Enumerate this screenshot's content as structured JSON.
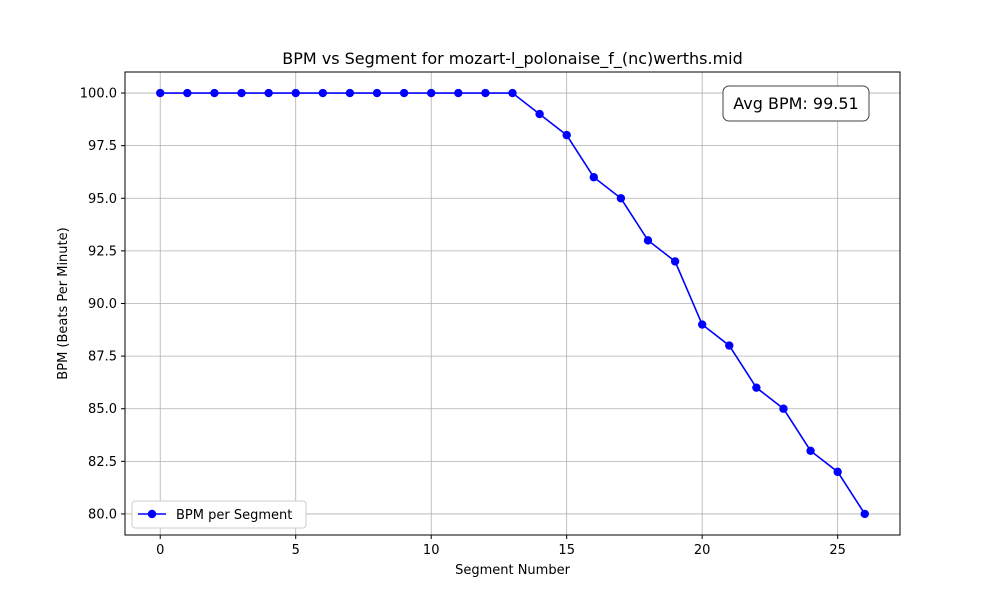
{
  "chart_data": {
    "type": "line",
    "title": "BPM vs Segment for mozart-l_polonaise_f_(nc)werths.mid",
    "xlabel": "Segment Number",
    "ylabel": "BPM (Beats Per Minute)",
    "xlim": [
      -1.3,
      27.3
    ],
    "ylim": [
      79.0,
      101.0
    ],
    "x_ticks": [
      0,
      5,
      10,
      15,
      20,
      25
    ],
    "y_ticks": [
      80.0,
      82.5,
      85.0,
      87.5,
      90.0,
      92.5,
      95.0,
      97.5,
      100.0
    ],
    "x_tick_labels": [
      "0",
      "5",
      "10",
      "15",
      "20",
      "25"
    ],
    "y_tick_labels": [
      "80.0",
      "82.5",
      "85.0",
      "87.5",
      "90.0",
      "92.5",
      "95.0",
      "97.5",
      "100.0"
    ],
    "grid": true,
    "legend_position": "lower-left",
    "series": [
      {
        "name": "BPM per Segment",
        "color": "#0000ff",
        "marker": "circle",
        "x": [
          0,
          1,
          2,
          3,
          4,
          5,
          6,
          7,
          8,
          9,
          10,
          11,
          12,
          13,
          14,
          15,
          16,
          17,
          18,
          19,
          20,
          21,
          22,
          23,
          24,
          25,
          26
        ],
        "values": [
          100,
          100,
          100,
          100,
          100,
          100,
          100,
          100,
          100,
          100,
          100,
          100,
          100,
          100,
          99,
          98,
          96,
          95,
          93,
          92,
          89,
          88,
          86,
          85,
          83,
          82,
          80
        ]
      }
    ],
    "annotation": {
      "text": "Avg BPM: 99.51",
      "position": "top-right"
    }
  }
}
